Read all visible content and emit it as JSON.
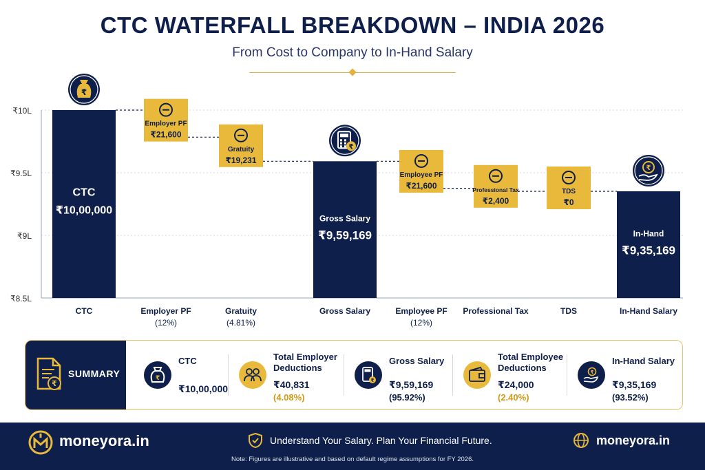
{
  "header": {
    "title": "CTC WATERFALL BREAKDOWN – INDIA 2026",
    "subtitle": "From Cost to Company to In-Hand Salary"
  },
  "colors": {
    "navy": "#0f1f4b",
    "gold": "#e9b93b",
    "gold_text": "#d19a16"
  },
  "chart_data": {
    "type": "bar",
    "ylim": [
      850000,
      1000000
    ],
    "yticks": [
      {
        "value": 1000000,
        "label": "₹10L"
      },
      {
        "value": 950000,
        "label": "₹9.5L"
      },
      {
        "value": 900000,
        "label": "₹9L"
      },
      {
        "value": 850000,
        "label": "₹8.5L"
      }
    ],
    "grid": true,
    "bars": [
      {
        "category": "CTC",
        "axis_label": [
          "CTC"
        ],
        "kind": "total",
        "start": 0,
        "end": 1000000,
        "inner_label": "CTC",
        "inner_value": "₹10,00,000",
        "icon": "money-bag-icon"
      },
      {
        "category": "Employer PF",
        "axis_label": [
          "Employer PF",
          "(12%)"
        ],
        "kind": "deduction",
        "start": 1000000,
        "end": 978400,
        "inner_label": "Employer PF",
        "inner_value": "₹21,600",
        "icon": "minus-circle-icon"
      },
      {
        "category": "Gratuity",
        "axis_label": [
          "Gratuity",
          "(4.81%)"
        ],
        "kind": "deduction",
        "start": 978400,
        "end": 959169,
        "inner_label": "Gratuity",
        "inner_value": "₹19,231",
        "icon": "minus-circle-icon"
      },
      {
        "category": "Gross Salary",
        "axis_label": [
          "Gross Salary"
        ],
        "kind": "total",
        "start": 0,
        "end": 959169,
        "inner_label": "Gross Salary",
        "inner_value": "₹9,59,169",
        "icon": "calculator-icon"
      },
      {
        "category": "Employee PF",
        "axis_label": [
          "Employee PF",
          "(12%)"
        ],
        "kind": "deduction",
        "start": 959169,
        "end": 937569,
        "inner_label": "Employee PF",
        "inner_value": "₹21,600",
        "icon": "minus-circle-icon"
      },
      {
        "category": "Professional Tax",
        "axis_label": [
          "Professional Tax"
        ],
        "kind": "deduction",
        "start": 937569,
        "end": 935169,
        "inner_label": "Professional Tax",
        "inner_value": "₹2,400",
        "icon": "minus-circle-icon"
      },
      {
        "category": "TDS",
        "axis_label": [
          "TDS"
        ],
        "kind": "deduction",
        "start": 935169,
        "end": 935169,
        "inner_label": "TDS",
        "inner_value": "₹0",
        "icon": "minus-circle-icon"
      },
      {
        "category": "In-Hand Salary",
        "axis_label": [
          "In-Hand Salary"
        ],
        "kind": "total",
        "start": 0,
        "end": 935169,
        "inner_label": "In-Hand",
        "inner_value": "₹9,35,169",
        "icon": "hand-rupee-icon"
      }
    ]
  },
  "summary": {
    "heading": "SUMMARY",
    "items": [
      {
        "title": [
          "CTC"
        ],
        "value": "₹10,00,000",
        "percent": "",
        "icon": "money-bag-icon",
        "style": "navy"
      },
      {
        "title": [
          "Total Employer",
          "Deductions"
        ],
        "value": "₹40,831",
        "percent": "(4.08%)",
        "icon": "people-icon",
        "style": "gold"
      },
      {
        "title": [
          "Gross Salary"
        ],
        "value": "₹9,59,169",
        "percent": "(95.92%)",
        "icon": "calculator-icon",
        "style": "navy"
      },
      {
        "title": [
          "Total Employee",
          "Deductions"
        ],
        "value": "₹24,000",
        "percent": "(2.40%)",
        "icon": "wallet-icon",
        "style": "gold"
      },
      {
        "title": [
          "In-Hand Salary"
        ],
        "value": "₹9,35,169",
        "percent": "(93.52%)",
        "icon": "hand-rupee-icon",
        "style": "navy"
      }
    ]
  },
  "footer": {
    "brand": "moneyora.in",
    "tagline": "Understand Your Salary. Plan Your Financial Future.",
    "website": "moneyora.in",
    "note": "Note: Figures are illustrative and based on default regime assumptions for FY 2026."
  }
}
